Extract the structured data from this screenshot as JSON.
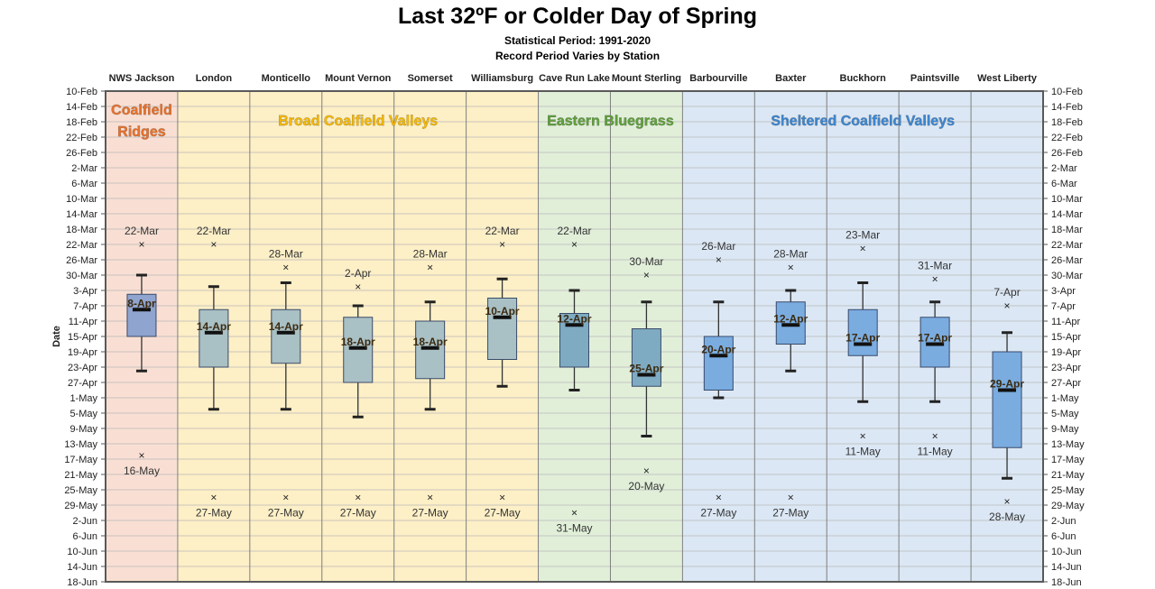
{
  "chart_data": {
    "type": "box",
    "title": "Last 32ºF or Colder Day of Spring",
    "subtitle": "Statistical Period: 1991-2020",
    "subtitle2": "Record Period Varies by Station",
    "ylabel": "Date",
    "y_ticks": [
      "10-Feb",
      "14-Feb",
      "18-Feb",
      "22-Feb",
      "26-Feb",
      "2-Mar",
      "6-Mar",
      "10-Mar",
      "14-Mar",
      "18-Mar",
      "22-Mar",
      "26-Mar",
      "30-Mar",
      "3-Apr",
      "7-Apr",
      "11-Apr",
      "15-Apr",
      "19-Apr",
      "23-Apr",
      "27-Apr",
      "1-May",
      "5-May",
      "9-May",
      "13-May",
      "17-May",
      "21-May",
      "25-May",
      "29-May",
      "2-Jun",
      "6-Jun",
      "10-Jun",
      "14-Jun",
      "18-Jun"
    ],
    "ylim": [
      "10-Feb",
      "18-Jun"
    ],
    "y_inverted": true,
    "grid": true,
    "regions": [
      {
        "label": "Coalfield\nRidges",
        "start": 0,
        "end": 0,
        "fill": "#f9dfd3",
        "label_color": "#e8712c"
      },
      {
        "label": "Broad Coalfield Valleys",
        "start": 1,
        "end": 5,
        "fill": "#fdefc6",
        "label_color": "#f5b800"
      },
      {
        "label": "Eastern Bluegrass",
        "start": 6,
        "end": 7,
        "fill": "#e1efd9",
        "label_color": "#5fa03a"
      },
      {
        "label": "Sheltered Coalfield Valleys",
        "start": 8,
        "end": 12,
        "fill": "#dbe7f4",
        "label_color": "#3d86d0"
      }
    ],
    "stations": [
      {
        "name": "NWS Jackson",
        "min": "30-Mar",
        "q1": "4-Apr",
        "median": "8-Apr",
        "q3": "15-Apr",
        "max": "24-Apr",
        "earliest": "22-Mar",
        "latest": "16-May",
        "box_color": "#8fa4cf",
        "median_label": "8-Apr"
      },
      {
        "name": "London",
        "min": "2-Apr",
        "q1": "8-Apr",
        "median": "14-Apr",
        "q3": "23-Apr",
        "max": "4-May",
        "earliest": "22-Mar",
        "latest": "27-May",
        "box_color": "#a9c0c4",
        "median_label": "14-Apr"
      },
      {
        "name": "Monticello",
        "min": "1-Apr",
        "q1": "8-Apr",
        "median": "14-Apr",
        "q3": "22-Apr",
        "max": "4-May",
        "earliest": "28-Mar",
        "latest": "27-May",
        "box_color": "#a9c0c4",
        "median_label": "14-Apr"
      },
      {
        "name": "Mount Vernon",
        "min": "7-Apr",
        "q1": "10-Apr",
        "median": "18-Apr",
        "q3": "27-Apr",
        "max": "6-May",
        "earliest": "2-Apr",
        "latest": "27-May",
        "box_color": "#a9c0c4",
        "median_label": "18-Apr"
      },
      {
        "name": "Somerset",
        "min": "6-Apr",
        "q1": "11-Apr",
        "median": "18-Apr",
        "q3": "26-Apr",
        "max": "4-May",
        "earliest": "28-Mar",
        "latest": "27-May",
        "box_color": "#a9c0c4",
        "median_label": "18-Apr"
      },
      {
        "name": "Williamsburg",
        "min": "31-Mar",
        "q1": "5-Apr",
        "median": "10-Apr",
        "q3": "21-Apr",
        "max": "28-Apr",
        "earliest": "22-Mar",
        "latest": "27-May",
        "box_color": "#a9c0c4",
        "median_label": "10-Apr"
      },
      {
        "name": "Cave Run Lake",
        "min": "3-Apr",
        "q1": "9-Apr",
        "median": "12-Apr",
        "q3": "23-Apr",
        "max": "29-Apr",
        "earliest": "22-Mar",
        "latest": "31-May",
        "box_color": "#7fabc2",
        "median_label": "12-Apr"
      },
      {
        "name": "Mount Sterling",
        "min": "6-Apr",
        "q1": "13-Apr",
        "median": "25-Apr",
        "q3": "28-Apr",
        "max": "11-May",
        "earliest": "30-Mar",
        "latest": "20-May",
        "box_color": "#7fabc2",
        "median_label": "25-Apr"
      },
      {
        "name": "Barbourville",
        "min": "6-Apr",
        "q1": "15-Apr",
        "median": "20-Apr",
        "q3": "29-Apr",
        "max": "1-May",
        "earliest": "26-Mar",
        "latest": "27-May",
        "box_color": "#7aace0",
        "median_label": "20-Apr"
      },
      {
        "name": "Baxter",
        "min": "3-Apr",
        "q1": "6-Apr",
        "median": "12-Apr",
        "q3": "17-Apr",
        "max": "24-Apr",
        "earliest": "28-Mar",
        "latest": "27-May",
        "box_color": "#7aace0",
        "median_label": "12-Apr"
      },
      {
        "name": "Buckhorn",
        "min": "1-Apr",
        "q1": "8-Apr",
        "median": "17-Apr",
        "q3": "20-Apr",
        "max": "2-May",
        "earliest": "23-Mar",
        "latest": "11-May",
        "box_color": "#7aace0",
        "median_label": "17-Apr"
      },
      {
        "name": "Paintsville",
        "min": "6-Apr",
        "q1": "10-Apr",
        "median": "17-Apr",
        "q3": "23-Apr",
        "max": "2-May",
        "earliest": "31-Mar",
        "latest": "11-May",
        "box_color": "#7aace0",
        "median_label": "17-Apr"
      },
      {
        "name": "West Liberty",
        "min": "14-Apr",
        "q1": "19-Apr",
        "median": "29-Apr",
        "q3": "14-May",
        "max": "22-May",
        "earliest": "7-Apr",
        "latest": "28-May",
        "box_color": "#7aace0",
        "median_label": "29-Apr"
      }
    ]
  }
}
